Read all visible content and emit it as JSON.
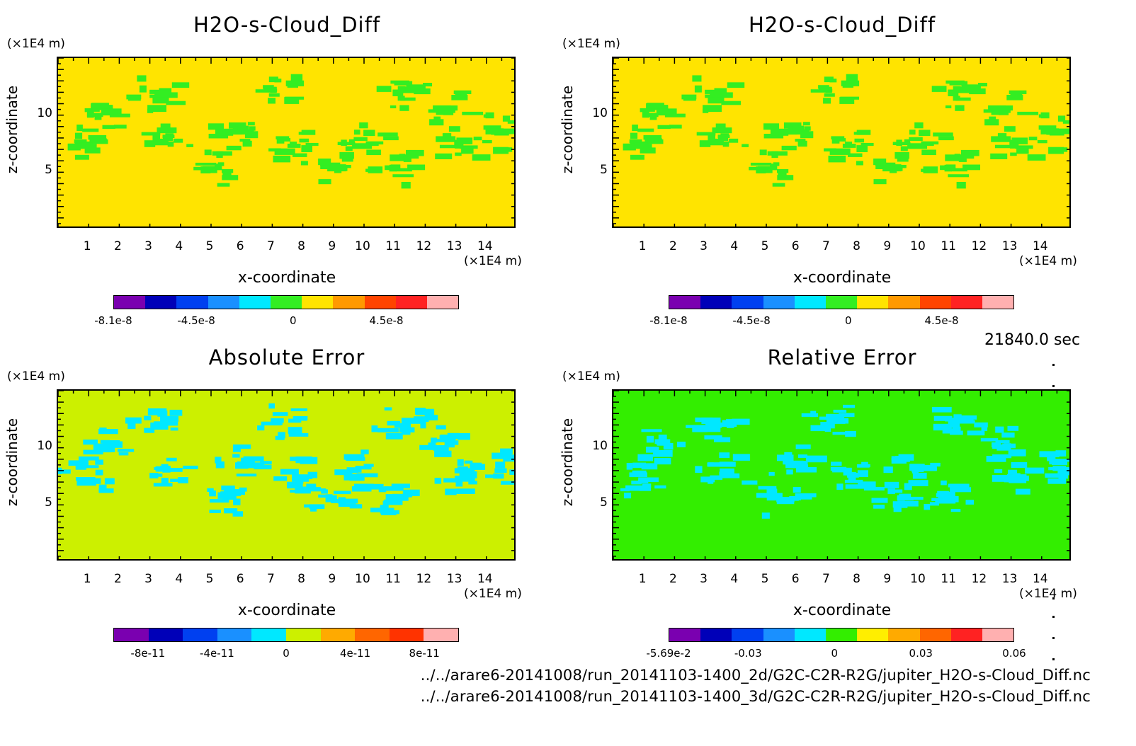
{
  "chart_data": [
    {
      "type": "heatmap",
      "title": "H2O-s-Cloud_Diff",
      "xlabel": "x-coordinate",
      "ylabel": "z-coordinate",
      "x_unit": "(×1E4 m)",
      "y_unit": "(×1E4 m)",
      "xlim": [
        0,
        15
      ],
      "ylim": [
        0,
        15
      ],
      "x_ticks": [
        "1",
        "2",
        "3",
        "4",
        "5",
        "6",
        "7",
        "8",
        "9",
        "10",
        "11",
        "12",
        "13",
        "14"
      ],
      "y_ticks": [
        "5",
        "10"
      ],
      "background_color": "#ffe400",
      "pattern_color": "#33ee22",
      "colorbar_colors": [
        "#7a00b0",
        "#0000b8",
        "#0040f0",
        "#1a90ff",
        "#00e8ff",
        "#33ee22",
        "#ffe400",
        "#ff9900",
        "#ff4400",
        "#ff2222",
        "#ffb0b0"
      ],
      "colorbar_labels": [
        "-8.1e-8",
        "-4.5e-8",
        "0",
        "4.5e-8"
      ],
      "colorbar_label_fracs": [
        0.0,
        0.24,
        0.52,
        0.79
      ]
    },
    {
      "type": "heatmap",
      "title": "H2O-s-Cloud_Diff",
      "xlabel": "x-coordinate",
      "ylabel": "z-coordinate",
      "x_unit": "(×1E4 m)",
      "y_unit": "(×1E4 m)",
      "xlim": [
        0,
        15
      ],
      "ylim": [
        0,
        15
      ],
      "x_ticks": [
        "1",
        "2",
        "3",
        "4",
        "5",
        "6",
        "7",
        "8",
        "9",
        "10",
        "11",
        "12",
        "13",
        "14"
      ],
      "y_ticks": [
        "5",
        "10"
      ],
      "background_color": "#ffe400",
      "pattern_color": "#33ee22",
      "colorbar_colors": [
        "#7a00b0",
        "#0000b8",
        "#0040f0",
        "#1a90ff",
        "#00e8ff",
        "#33ee22",
        "#ffe400",
        "#ff9900",
        "#ff4400",
        "#ff2222",
        "#ffb0b0"
      ],
      "colorbar_labels": [
        "-8.1e-8",
        "-4.5e-8",
        "0",
        "4.5e-8"
      ],
      "colorbar_label_fracs": [
        0.0,
        0.24,
        0.52,
        0.79
      ]
    },
    {
      "type": "heatmap",
      "title": "Absolute Error",
      "xlabel": "x-coordinate",
      "ylabel": "z-coordinate",
      "x_unit": "(×1E4 m)",
      "y_unit": "(×1E4 m)",
      "xlim": [
        0,
        15
      ],
      "ylim": [
        0,
        15
      ],
      "x_ticks": [
        "1",
        "2",
        "3",
        "4",
        "5",
        "6",
        "7",
        "8",
        "9",
        "10",
        "11",
        "12",
        "13",
        "14"
      ],
      "y_ticks": [
        "5",
        "10"
      ],
      "background_color": "#ccf000",
      "pattern_color": "#00e8ff",
      "colorbar_colors": [
        "#7a00b0",
        "#0000b8",
        "#0040f0",
        "#1a90ff",
        "#00e8ff",
        "#ccf000",
        "#ffaa00",
        "#ff6600",
        "#ff3300",
        "#ffb0b0"
      ],
      "colorbar_labels": [
        "-8e-11",
        "-4e-11",
        "0",
        "4e-11",
        "8e-11"
      ],
      "colorbar_label_fracs": [
        0.1,
        0.3,
        0.5,
        0.7,
        0.9
      ]
    },
    {
      "type": "heatmap",
      "title": "Relative Error",
      "xlabel": "x-coordinate",
      "ylabel": "z-coordinate",
      "x_unit": "(×1E4 m)",
      "y_unit": "(×1E4 m)",
      "xlim": [
        0,
        15
      ],
      "ylim": [
        0,
        15
      ],
      "x_ticks": [
        "1",
        "2",
        "3",
        "4",
        "5",
        "6",
        "7",
        "8",
        "9",
        "10",
        "11",
        "12",
        "13",
        "14"
      ],
      "y_ticks": [
        "5",
        "10"
      ],
      "background_color": "#33ee00",
      "pattern_color": "#00e8ff",
      "colorbar_colors": [
        "#7a00b0",
        "#0000b8",
        "#0040f0",
        "#1a90ff",
        "#00e8ff",
        "#33ee00",
        "#ffee00",
        "#ffaa00",
        "#ff6600",
        "#ff2222",
        "#ffb0b0"
      ],
      "colorbar_labels": [
        "-5.69e-2",
        "-0.03",
        "0",
        "0.03",
        "0.06"
      ],
      "colorbar_label_fracs": [
        0.0,
        0.23,
        0.48,
        0.73,
        1.0
      ]
    }
  ],
  "timestamp": "21840.0 sec",
  "file_paths": [
    "../../arare6-20141008/run_20141103-1400_2d/G2C-C2R-R2G/jupiter_H2O-s-Cloud_Diff.nc",
    "../../arare6-20141008/run_20141103-1400_3d/G2C-C2R-R2G/jupiter_H2O-s-Cloud_Diff.nc"
  ]
}
